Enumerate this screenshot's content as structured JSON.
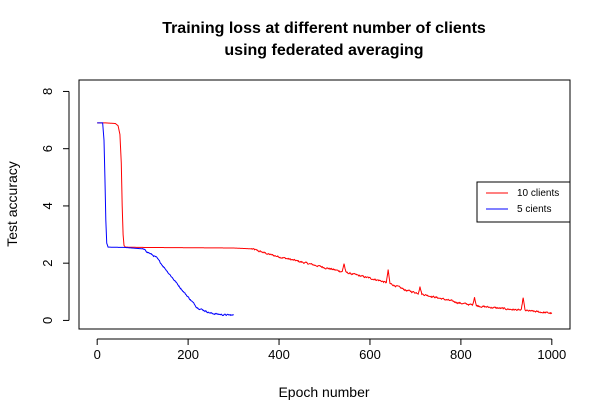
{
  "chart_data": {
    "type": "line",
    "title_line1": "Training loss at different number of clients",
    "title_line2": "using federated averaging",
    "xlabel": "Epoch number",
    "ylabel": "Test accuracy",
    "xlim": [
      -40,
      1040
    ],
    "ylim": [
      -0.3,
      8.4
    ],
    "xticks": [
      0,
      200,
      400,
      600,
      800,
      1000
    ],
    "yticks": [
      0,
      2,
      4,
      6,
      8
    ],
    "grid": false,
    "legend_position": "right",
    "series": [
      {
        "name": "10 clients",
        "color": "#ff0000",
        "points": [
          [
            0,
            6.9
          ],
          [
            20,
            6.9
          ],
          [
            40,
            6.88
          ],
          [
            46,
            6.8
          ],
          [
            50,
            6.5
          ],
          [
            53,
            5.5
          ],
          [
            55,
            4.0
          ],
          [
            57,
            3.0
          ],
          [
            59,
            2.62
          ],
          [
            62,
            2.56
          ],
          [
            100,
            2.55
          ],
          [
            200,
            2.54
          ],
          [
            300,
            2.53
          ],
          [
            340,
            2.5
          ],
          [
            380,
            2.3
          ],
          [
            420,
            2.15
          ],
          [
            460,
            2.0
          ],
          [
            500,
            1.85
          ],
          [
            540,
            1.7
          ],
          [
            580,
            1.55
          ],
          [
            620,
            1.4
          ],
          [
            650,
            1.25
          ],
          [
            680,
            1.05
          ],
          [
            720,
            0.9
          ],
          [
            760,
            0.75
          ],
          [
            800,
            0.6
          ],
          [
            850,
            0.48
          ],
          [
            900,
            0.4
          ],
          [
            950,
            0.33
          ],
          [
            1000,
            0.25
          ]
        ],
        "spikes": [
          [
            543,
            0.3
          ],
          [
            640,
            0.45
          ],
          [
            710,
            0.25
          ],
          [
            830,
            0.3
          ],
          [
            937,
            0.45
          ]
        ],
        "noise": 0.06
      },
      {
        "name": "5 cients",
        "color": "#0000ff",
        "points": [
          [
            0,
            6.9
          ],
          [
            12,
            6.9
          ],
          [
            15,
            6.3
          ],
          [
            17,
            5.0
          ],
          [
            19,
            3.5
          ],
          [
            21,
            2.7
          ],
          [
            24,
            2.56
          ],
          [
            60,
            2.55
          ],
          [
            100,
            2.5
          ],
          [
            130,
            2.2
          ],
          [
            160,
            1.6
          ],
          [
            190,
            1.0
          ],
          [
            220,
            0.45
          ],
          [
            250,
            0.25
          ],
          [
            275,
            0.2
          ],
          [
            300,
            0.18
          ]
        ],
        "spikes": [],
        "noise": 0.05
      }
    ]
  }
}
